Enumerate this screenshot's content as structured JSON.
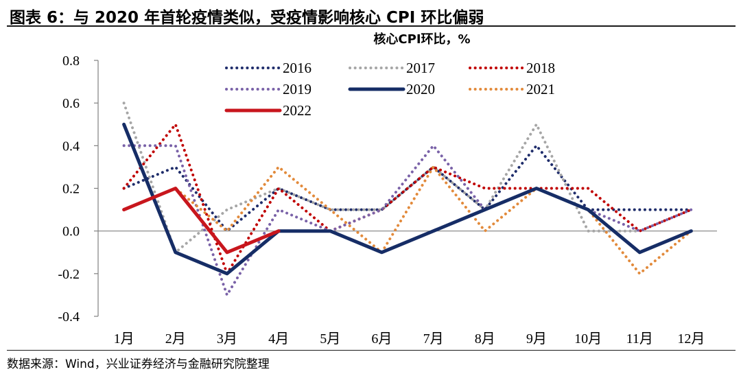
{
  "figure": {
    "title": "图表 6：与 2020 年首轮疫情类似，受疫情影响核心 CPI 环比偏弱",
    "source": "数据来源：Wind，兴业证券经济与金融研究院整理"
  },
  "chart_data": {
    "type": "line",
    "title": "核心CPI环比，%",
    "xlabel": "",
    "ylabel": "",
    "categories": [
      "1月",
      "2月",
      "3月",
      "4月",
      "5月",
      "6月",
      "7月",
      "8月",
      "9月",
      "10月",
      "11月",
      "12月"
    ],
    "ylim": [
      -0.4,
      0.8
    ],
    "yticks": [
      -0.4,
      -0.2,
      0.0,
      0.2,
      0.4,
      0.6,
      0.8
    ],
    "ytick_labels": [
      "-0.4",
      "-0.2",
      "0.0",
      "0.2",
      "0.4",
      "0.6",
      "0.8"
    ],
    "grid": false,
    "legend_position": "top-right",
    "series": [
      {
        "name": "2016",
        "color": "#1f2d6b",
        "style": "dotted",
        "values": [
          0.2,
          0.3,
          0.0,
          0.2,
          0.1,
          0.1,
          0.3,
          0.1,
          0.4,
          0.1,
          0.1,
          0.1
        ]
      },
      {
        "name": "2017",
        "color": "#a6a6a6",
        "style": "dotted",
        "values": [
          0.6,
          -0.1,
          0.1,
          0.2,
          0.1,
          0.1,
          0.3,
          0.1,
          0.5,
          0.0,
          0.0,
          0.1
        ]
      },
      {
        "name": "2018",
        "color": "#c00000",
        "style": "dotted",
        "values": [
          0.2,
          0.5,
          -0.2,
          0.2,
          0.0,
          0.1,
          0.3,
          0.2,
          0.2,
          0.2,
          0.0,
          0.1
        ]
      },
      {
        "name": "2019",
        "color": "#7a62a8",
        "style": "dotted",
        "values": [
          0.4,
          0.4,
          -0.3,
          0.1,
          0.0,
          0.1,
          0.4,
          0.1,
          0.2,
          0.1,
          0.0,
          0.1
        ]
      },
      {
        "name": "2020",
        "color": "#162d66",
        "style": "solid",
        "values": [
          0.5,
          -0.1,
          -0.2,
          0.0,
          0.0,
          -0.1,
          0.0,
          0.1,
          0.2,
          0.1,
          -0.1,
          0.0
        ]
      },
      {
        "name": "2021",
        "color": "#e28a3b",
        "style": "dotted",
        "values": [
          0.1,
          0.2,
          0.0,
          0.3,
          0.1,
          -0.1,
          0.3,
          0.0,
          0.2,
          0.1,
          -0.2,
          0.0
        ]
      },
      {
        "name": "2022",
        "color": "#c8161d",
        "style": "solid",
        "values": [
          0.1,
          0.2,
          -0.1,
          0.0,
          null,
          null,
          null,
          null,
          null,
          null,
          null,
          null
        ]
      }
    ]
  }
}
